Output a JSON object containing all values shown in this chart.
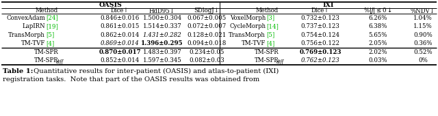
{
  "oasis_header": "OASIS",
  "ixi_header": "IXI",
  "oasis_col_headers": [
    "Method",
    "Dice↑",
    "HdD95↓",
    "SDlogJ↓"
  ],
  "ixi_col_headers": [
    "Method",
    "Dice↑",
    "%|J| ≤ 0 ↓",
    "%NDV↓"
  ],
  "oasis_rows": [
    {
      "method": "ConvexAdam",
      "ref": "[24]",
      "dice": "0.846±0.016",
      "hd": "1.500±0.304",
      "sd": "0.067±0.005",
      "ref_color": "#00bb00",
      "dice_bold": false,
      "dice_italic": false,
      "hd_bold": false,
      "hd_italic": false,
      "sd_bold": false,
      "sd_italic": false
    },
    {
      "method": "LapIRN",
      "ref": "[19]",
      "dice": "0.861±0.015",
      "hd": "1.514±0.337",
      "sd": "0.072±0.007",
      "ref_color": "#00bb00",
      "dice_bold": false,
      "dice_italic": false,
      "hd_bold": false,
      "hd_italic": false,
      "sd_bold": false,
      "sd_italic": false
    },
    {
      "method": "TransMorph",
      "ref": "[5]",
      "dice": "0.862±0.014",
      "hd": "1.431±0.282",
      "sd": "0.128±0.021",
      "ref_color": "#00bb00",
      "dice_bold": false,
      "dice_italic": false,
      "hd_bold": false,
      "hd_italic": true,
      "sd_bold": false,
      "sd_italic": false
    },
    {
      "method": "TM-TVF",
      "ref": "[4]",
      "dice": "0.869±0.014",
      "hd": "1.396±0.295",
      "sd": "0.094±0.018",
      "ref_color": "#00bb00",
      "dice_bold": false,
      "dice_italic": true,
      "hd_bold": true,
      "hd_italic": false,
      "sd_bold": false,
      "sd_italic": false
    },
    {
      "method": "TM-SPR",
      "ref": "",
      "dice": "0.870±0.017",
      "hd": "1.483±0.397",
      "sd": "0.234±0.05",
      "ref_color": "#000000",
      "dice_bold": true,
      "dice_italic": false,
      "hd_bold": false,
      "hd_italic": false,
      "sd_bold": false,
      "sd_italic": false
    },
    {
      "method": "TM-SPR",
      "ref": "",
      "is_diff": true,
      "dice": "0.852±0.014",
      "hd": "1.597±0.345",
      "sd": "0.082±0.03",
      "ref_color": "#000000",
      "dice_bold": false,
      "dice_italic": false,
      "hd_bold": false,
      "hd_italic": false,
      "sd_bold": false,
      "sd_italic": false
    }
  ],
  "ixi_rows": [
    {
      "method": "VoxelMorph",
      "ref": "[3]",
      "dice": "0.732±0.123",
      "pct": "6.26%",
      "ndv": "1.04%",
      "ref_color": "#00bb00",
      "dice_bold": false,
      "dice_italic": false
    },
    {
      "method": "CycleMorph",
      "ref": "[14]",
      "dice": "0.737±0.123",
      "pct": "6.38%",
      "ndv": "1.15%",
      "ref_color": "#00bb00",
      "dice_bold": false,
      "dice_italic": false
    },
    {
      "method": "TransMorph",
      "ref": "[5]",
      "dice": "0.754±0.124",
      "pct": "5.65%",
      "ndv": "0.90%",
      "ref_color": "#00bb00",
      "dice_bold": false,
      "dice_italic": false
    },
    {
      "method": "TM-TVF",
      "ref": "[4]",
      "dice": "0.756±0.122",
      "pct": "2.05%",
      "ndv": "0.36%",
      "ref_color": "#00bb00",
      "dice_bold": false,
      "dice_italic": false
    },
    {
      "method": "TM-SPR",
      "ref": "",
      "dice": "0.769±0.123",
      "pct": "2.02%",
      "ndv": "0.52%",
      "ref_color": "#000000",
      "dice_bold": true,
      "dice_italic": false
    },
    {
      "method": "TM-SPR",
      "ref": "",
      "is_diff": true,
      "dice": "0.762±0.123",
      "pct": "0.03%",
      "ndv": "0%",
      "ref_color": "#000000",
      "dice_bold": false,
      "dice_italic": true
    }
  ],
  "caption_bold": "Table 1:",
  "caption_rest": " Quantitative results for inter-patient (OASIS) and atlas-to-patient (IXI)",
  "caption_line2": "registration tasks.  Note that part of the OASIS results was obtained from",
  "bg_color": "#ffffff",
  "font_size": 6.2,
  "header_font_size": 6.8,
  "caption_font_size": 7.2
}
